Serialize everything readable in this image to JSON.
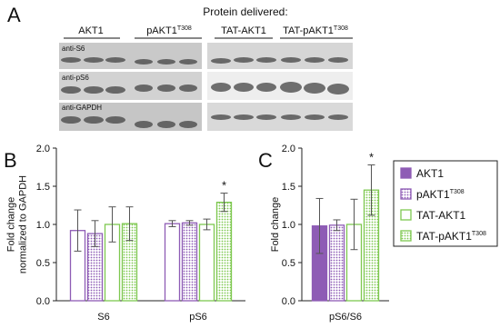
{
  "panel_a": {
    "letter": "A",
    "title": "Protein delivered:",
    "groups": [
      {
        "text": "AKT1"
      },
      {
        "text": "pAKT1",
        "sup": "T308"
      },
      {
        "text": "TAT-AKT1"
      },
      {
        "text": "TAT-pAKT1",
        "sup": "T308"
      }
    ],
    "blots": [
      "anti-S6",
      "anti-pS6",
      "anti-GAPDH"
    ]
  },
  "chart_data": [
    {
      "type": "bar",
      "panel": "B",
      "ylabel": [
        "Fold change",
        "normalized to GAPDH"
      ],
      "categories": [
        "S6",
        "pS6"
      ],
      "series": [
        {
          "name": "AKT1",
          "color": "#8e5cb5",
          "fill": "none",
          "values": [
            0.92,
            1.01
          ],
          "errors": [
            0.27,
            0.04
          ]
        },
        {
          "name": "pAKT1",
          "name_sup": "T308",
          "color": "#8e5cb5",
          "fill": "dots",
          "values": [
            0.88,
            1.02
          ],
          "errors": [
            0.17,
            0.03
          ]
        },
        {
          "name": "TAT-AKT1",
          "color": "#7ec850",
          "fill": "none",
          "values": [
            1.0,
            1.0
          ],
          "errors": [
            0.23,
            0.07
          ]
        },
        {
          "name": "TAT-pAKT1",
          "name_sup": "T308",
          "color": "#7ec850",
          "fill": "dots",
          "values": [
            1.01,
            1.29
          ],
          "errors": [
            0.22,
            0.12
          ]
        }
      ],
      "ylim": [
        0,
        2
      ],
      "yticks": [
        {
          "value": 0,
          "label": "0.0"
        },
        {
          "value": 0.5,
          "label": "0.5"
        },
        {
          "value": 1,
          "label": "1.0"
        },
        {
          "value": 1.5,
          "label": "1.5"
        },
        {
          "value": 2,
          "label": "2.0"
        }
      ],
      "annotations": [
        {
          "text": "*",
          "series": 3,
          "category": 1
        }
      ]
    },
    {
      "type": "bar",
      "panel": "C",
      "ylabel": [
        "Fold change"
      ],
      "categories": [
        "pS6/S6"
      ],
      "series": [
        {
          "name": "AKT1",
          "color": "#8e5cb5",
          "fill": "solid",
          "values": [
            0.98
          ],
          "errors": [
            0.36
          ]
        },
        {
          "name": "pAKT1",
          "name_sup": "T308",
          "color": "#8e5cb5",
          "fill": "dots",
          "values": [
            0.99
          ],
          "errors": [
            0.07
          ]
        },
        {
          "name": "TAT-AKT1",
          "color": "#7ec850",
          "fill": "none",
          "values": [
            1.0
          ],
          "errors": [
            0.33
          ]
        },
        {
          "name": "TAT-pAKT1",
          "name_sup": "T308",
          "color": "#7ec850",
          "fill": "dots",
          "values": [
            1.45
          ],
          "errors": [
            0.33
          ]
        }
      ],
      "ylim": [
        0,
        2
      ],
      "yticks": [
        {
          "value": 0,
          "label": "0.0"
        },
        {
          "value": 0.5,
          "label": "0.5"
        },
        {
          "value": 1,
          "label": "1.0"
        },
        {
          "value": 1.5,
          "label": "1.5"
        },
        {
          "value": 2,
          "label": "2.0"
        }
      ],
      "annotations": [
        {
          "text": "*",
          "series": 3,
          "category": 0
        }
      ],
      "legend": "right"
    }
  ]
}
